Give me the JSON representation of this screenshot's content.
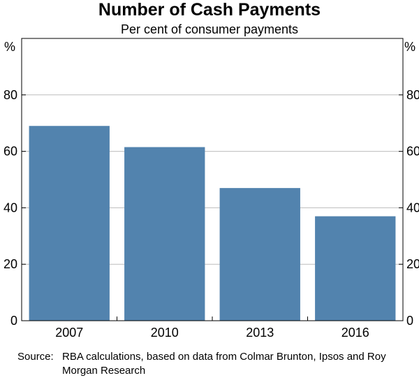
{
  "chart_data": {
    "type": "bar",
    "title": "Number of Cash Payments",
    "subtitle": "Per cent of consumer payments",
    "categories": [
      "2007",
      "2010",
      "2013",
      "2016"
    ],
    "values": [
      69,
      61.5,
      47,
      37
    ],
    "color": "#5283ae",
    "ylabel_left": "%",
    "ylabel_right": "%",
    "ylim": [
      0,
      100
    ],
    "yticks": [
      0,
      20,
      40,
      60,
      80
    ],
    "grid": true,
    "dual_y_axis": true
  },
  "source": {
    "label": "Source:",
    "text": "RBA calculations, based on data from Colmar Brunton, Ipsos and Roy Morgan Research"
  }
}
